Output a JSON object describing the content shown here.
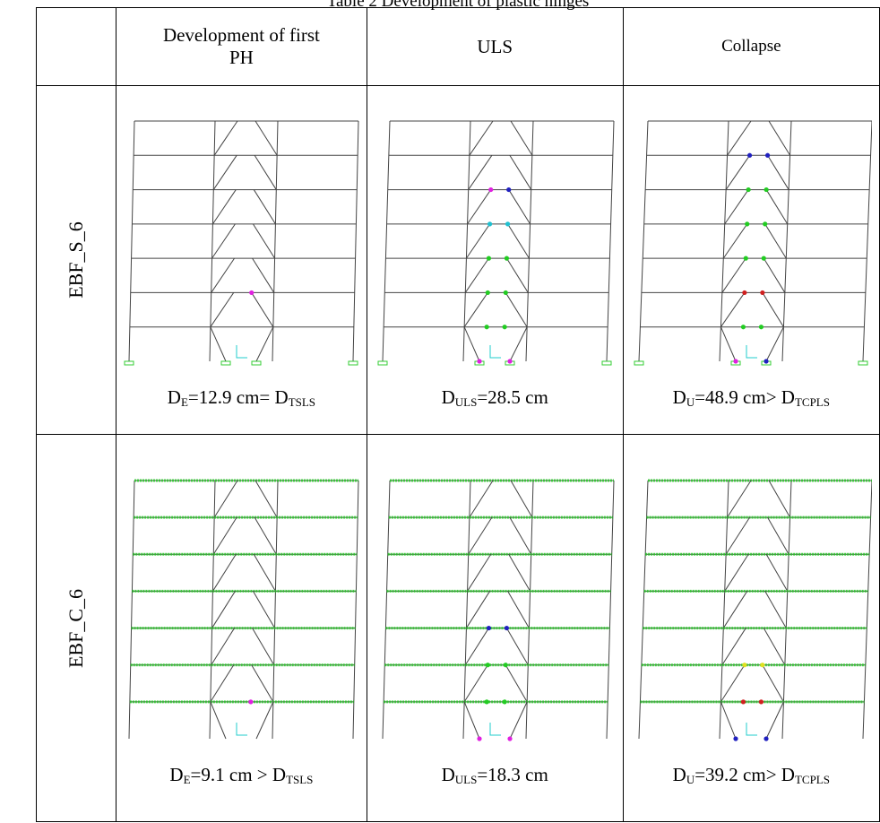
{
  "caption": "Table 2 Development of plastic hinges",
  "table": {
    "header": [
      "Development of first PH",
      "ULS",
      "Collapse"
    ],
    "rows": [
      {
        "label": "EBF_S_6",
        "cells": [
          {
            "parts": [
              "D",
              "E",
              "=12.9 cm= D",
              "TSLS"
            ]
          },
          {
            "parts": [
              "D",
              "ULS",
              "=28.5 cm"
            ]
          },
          {
            "parts": [
              "D",
              "U",
              "=48.9 cm> D",
              "TCPLS"
            ]
          }
        ]
      },
      {
        "label": "EBF_C_6",
        "cells": [
          {
            "parts": [
              "D",
              "E",
              "=9.1 cm > D",
              "TSLS"
            ]
          },
          {
            "parts": [
              "D",
              "ULS",
              "=18.3 cm"
            ]
          },
          {
            "parts": [
              "D",
              "U",
              "=39.2 cm> D",
              "TCPLS"
            ]
          }
        ]
      }
    ]
  }
}
